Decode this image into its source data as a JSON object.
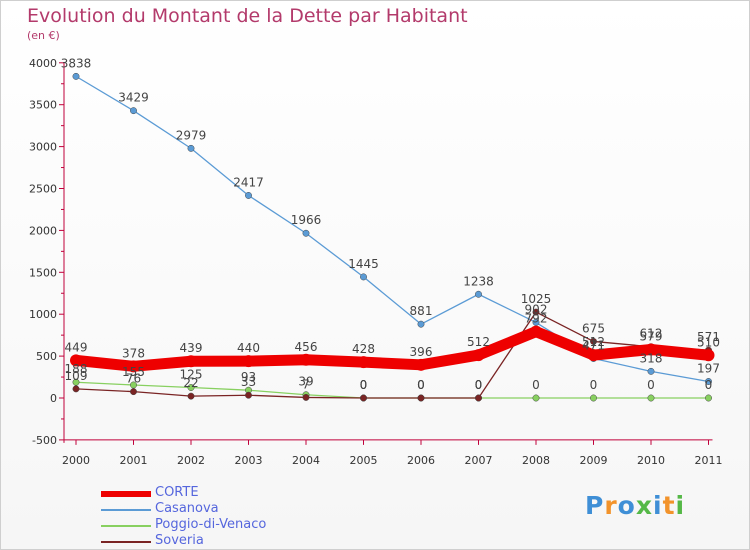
{
  "title": "Evolution du Montant de la Dette par Habitant",
  "subtitle": "(en €)",
  "logo": [
    "P",
    "r",
    "o",
    "x",
    "i",
    "t",
    "i"
  ],
  "logo_colors": [
    "#3f8fd6",
    "#f2932b",
    "#3f8fd6",
    "#55b847",
    "#3f8fd6",
    "#f2932b",
    "#55b847"
  ],
  "chart_data": {
    "type": "line",
    "title": "Evolution du Montant de la Dette par Habitant",
    "subtitle": "(en €)",
    "xlabel": "",
    "ylabel": "",
    "categories": [
      "2000",
      "2001",
      "2002",
      "2003",
      "2004",
      "2005",
      "2006",
      "2007",
      "2008",
      "2009",
      "2010",
      "2011"
    ],
    "ylim": [
      -500,
      4000
    ],
    "yticks": [
      -500,
      0,
      500,
      1000,
      1500,
      2000,
      2500,
      3000,
      3500,
      4000
    ],
    "grid": false,
    "legend_position": "bottom-left",
    "series": [
      {
        "name": "CORTE",
        "color": "#ee0000",
        "values": [
          449,
          378,
          439,
          440,
          456,
          428,
          396,
          512,
          792,
          512,
          579,
          510
        ],
        "labels": [
          "449",
          "378",
          "439",
          "440",
          "456",
          "428",
          "396",
          "512",
          "792",
          "512",
          "579",
          "510"
        ]
      },
      {
        "name": "Casanova",
        "color": "#5b9bd5",
        "values": [
          3838,
          3429,
          2979,
          2417,
          1966,
          1445,
          881,
          1238,
          902,
          471,
          318,
          197
        ],
        "labels": [
          "3838",
          "3429",
          "2979",
          "2417",
          "1966",
          "1445",
          "881",
          "1238",
          "902",
          "471",
          "318",
          "197"
        ]
      },
      {
        "name": "Poggio-di-Venaco",
        "color": "#88d060",
        "values": [
          188,
          155,
          125,
          93,
          39,
          0,
          0,
          0,
          0,
          0,
          0,
          0
        ],
        "labels": [
          "188",
          "155",
          "125",
          "93",
          "39",
          "0",
          "0",
          "0",
          "0",
          "0",
          "0",
          "0"
        ]
      },
      {
        "name": "Soveria",
        "color": "#7a2424",
        "values": [
          109,
          76,
          22,
          33,
          7,
          0,
          0,
          0,
          1025,
          675,
          612,
          571
        ],
        "labels": [
          "109",
          "76",
          "22",
          "33",
          "7",
          "0",
          "0",
          "0",
          "1025",
          "675",
          "612",
          "571"
        ]
      }
    ]
  }
}
